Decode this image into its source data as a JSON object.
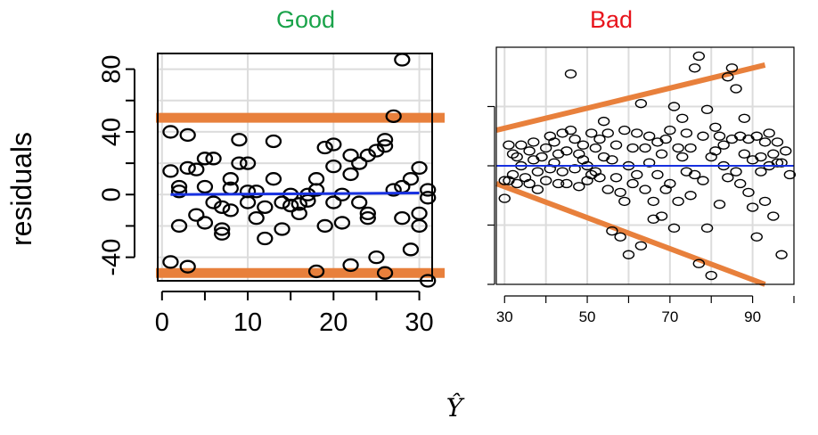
{
  "chart_data": [
    {
      "type": "scatter",
      "title": "Good",
      "title_color": "#1aa34a",
      "xlabel": "",
      "ylabel": "residuals",
      "xlim": [
        -0.5,
        31.5
      ],
      "ylim": [
        -55,
        90
      ],
      "xticks": [
        0,
        10,
        20,
        30
      ],
      "yticks": [
        80,
        40,
        0,
        -40
      ],
      "yticks_minor": [
        -20,
        20,
        60
      ],
      "grid": true,
      "band_color": "#e8803c",
      "fit_color": "#1730e0",
      "bands": [
        {
          "y0": 49,
          "y1": 49
        },
        {
          "y0": -50,
          "y1": -50
        }
      ],
      "fit": {
        "x0": 1,
        "y0": 0,
        "x1": 30,
        "y1": 1
      },
      "points": [
        {
          "x": 1,
          "y": -43
        },
        {
          "x": 1,
          "y": 15
        },
        {
          "x": 1,
          "y": 40
        },
        {
          "x": 2,
          "y": 5
        },
        {
          "x": 2,
          "y": 2
        },
        {
          "x": 2,
          "y": -20
        },
        {
          "x": 3,
          "y": 17
        },
        {
          "x": 3,
          "y": 38
        },
        {
          "x": 3,
          "y": -46
        },
        {
          "x": 4,
          "y": 16
        },
        {
          "x": 4,
          "y": -13
        },
        {
          "x": 5,
          "y": 5
        },
        {
          "x": 5,
          "y": -18
        },
        {
          "x": 5,
          "y": 23
        },
        {
          "x": 6,
          "y": 23
        },
        {
          "x": 6,
          "y": -5
        },
        {
          "x": 7,
          "y": -25
        },
        {
          "x": 7,
          "y": -22
        },
        {
          "x": 7,
          "y": -8
        },
        {
          "x": 8,
          "y": 10
        },
        {
          "x": 8,
          "y": 4
        },
        {
          "x": 8,
          "y": -10
        },
        {
          "x": 9,
          "y": 35
        },
        {
          "x": 9,
          "y": 20
        },
        {
          "x": 10,
          "y": 2
        },
        {
          "x": 10,
          "y": -5
        },
        {
          "x": 10,
          "y": 20
        },
        {
          "x": 11,
          "y": -15
        },
        {
          "x": 11,
          "y": 2
        },
        {
          "x": 12,
          "y": -28
        },
        {
          "x": 12,
          "y": -8
        },
        {
          "x": 13,
          "y": 34
        },
        {
          "x": 13,
          "y": 10
        },
        {
          "x": 14,
          "y": -22
        },
        {
          "x": 14,
          "y": -5
        },
        {
          "x": 15,
          "y": 0
        },
        {
          "x": 15,
          "y": -7
        },
        {
          "x": 16,
          "y": -6
        },
        {
          "x": 16,
          "y": -12
        },
        {
          "x": 17,
          "y": -4
        },
        {
          "x": 17,
          "y": 0
        },
        {
          "x": 18,
          "y": 10
        },
        {
          "x": 18,
          "y": 3
        },
        {
          "x": 18,
          "y": -49
        },
        {
          "x": 19,
          "y": 30
        },
        {
          "x": 19,
          "y": -20
        },
        {
          "x": 20,
          "y": 18
        },
        {
          "x": 20,
          "y": -5
        },
        {
          "x": 20,
          "y": 32
        },
        {
          "x": 21,
          "y": -18
        },
        {
          "x": 21,
          "y": 0
        },
        {
          "x": 22,
          "y": 25
        },
        {
          "x": 22,
          "y": 13
        },
        {
          "x": 22,
          "y": -45
        },
        {
          "x": 23,
          "y": 20
        },
        {
          "x": 23,
          "y": -5
        },
        {
          "x": 24,
          "y": 25
        },
        {
          "x": 24,
          "y": -12
        },
        {
          "x": 24,
          "y": -15
        },
        {
          "x": 25,
          "y": 28
        },
        {
          "x": 25,
          "y": -40
        },
        {
          "x": 26,
          "y": 35
        },
        {
          "x": 26,
          "y": 31
        },
        {
          "x": 26,
          "y": -50
        },
        {
          "x": 27,
          "y": 50
        },
        {
          "x": 27,
          "y": 3
        },
        {
          "x": 28,
          "y": 86
        },
        {
          "x": 28,
          "y": -15
        },
        {
          "x": 28,
          "y": 5
        },
        {
          "x": 29,
          "y": 10
        },
        {
          "x": 29,
          "y": -35
        },
        {
          "x": 30,
          "y": 17
        },
        {
          "x": 30,
          "y": -12
        },
        {
          "x": 30,
          "y": -20
        },
        {
          "x": 31,
          "y": 3
        },
        {
          "x": 31,
          "y": -55
        },
        {
          "x": 31,
          "y": -2
        }
      ]
    },
    {
      "type": "scatter",
      "title": "Bad",
      "title_color": "#e8141c",
      "xlabel": "",
      "ylabel": "",
      "xlim": [
        28,
        100
      ],
      "ylim": [
        -40,
        40
      ],
      "xticks": [
        30,
        50,
        70,
        90
      ],
      "xticks_minor": [
        40,
        60,
        80,
        100
      ],
      "yticks": [],
      "grid": true,
      "band_color": "#e8803c",
      "fit_color": "#1730e0",
      "bands": [
        {
          "x0": 28,
          "y0": 12,
          "x1": 93,
          "y1": 34
        },
        {
          "x0": 28,
          "y0": -6,
          "x1": 93,
          "y1": -40
        }
      ],
      "fit": {
        "x0": 28,
        "y0": 0,
        "x1": 100,
        "y1": 0
      },
      "points": [
        {
          "x": 30,
          "y": -11
        },
        {
          "x": 30,
          "y": -5
        },
        {
          "x": 31,
          "y": -5
        },
        {
          "x": 31,
          "y": 7
        },
        {
          "x": 32,
          "y": -3
        },
        {
          "x": 32,
          "y": 4
        },
        {
          "x": 33,
          "y": 3
        },
        {
          "x": 33,
          "y": -6
        },
        {
          "x": 34,
          "y": 7
        },
        {
          "x": 34,
          "y": 0
        },
        {
          "x": 35,
          "y": -4
        },
        {
          "x": 36,
          "y": 5
        },
        {
          "x": 36,
          "y": -6
        },
        {
          "x": 37,
          "y": 2
        },
        {
          "x": 37,
          "y": 8
        },
        {
          "x": 38,
          "y": -2
        },
        {
          "x": 38,
          "y": -8
        },
        {
          "x": 39,
          "y": 3
        },
        {
          "x": 40,
          "y": 6
        },
        {
          "x": 40,
          "y": -5
        },
        {
          "x": 41,
          "y": 10
        },
        {
          "x": 41,
          "y": -1
        },
        {
          "x": 42,
          "y": 8
        },
        {
          "x": 42,
          "y": 1
        },
        {
          "x": 43,
          "y": -6
        },
        {
          "x": 43,
          "y": 4
        },
        {
          "x": 44,
          "y": -2
        },
        {
          "x": 44,
          "y": 11
        },
        {
          "x": 45,
          "y": 5
        },
        {
          "x": 45,
          "y": -6
        },
        {
          "x": 46,
          "y": 31
        },
        {
          "x": 46,
          "y": 12
        },
        {
          "x": 47,
          "y": -1
        },
        {
          "x": 47,
          "y": 9
        },
        {
          "x": 48,
          "y": 4
        },
        {
          "x": 48,
          "y": -7
        },
        {
          "x": 49,
          "y": 2
        },
        {
          "x": 49,
          "y": 7
        },
        {
          "x": 50,
          "y": -5
        },
        {
          "x": 50,
          "y": 0
        },
        {
          "x": 51,
          "y": -3
        },
        {
          "x": 51,
          "y": 11
        },
        {
          "x": 52,
          "y": 6
        },
        {
          "x": 52,
          "y": -2
        },
        {
          "x": 53,
          "y": -4
        },
        {
          "x": 53,
          "y": 9
        },
        {
          "x": 54,
          "y": 15
        },
        {
          "x": 54,
          "y": 3
        },
        {
          "x": 55,
          "y": 11
        },
        {
          "x": 55,
          "y": -8
        },
        {
          "x": 56,
          "y": -22
        },
        {
          "x": 56,
          "y": 2
        },
        {
          "x": 57,
          "y": -4
        },
        {
          "x": 57,
          "y": 7
        },
        {
          "x": 58,
          "y": -9
        },
        {
          "x": 58,
          "y": -24
        },
        {
          "x": 59,
          "y": 12
        },
        {
          "x": 59,
          "y": -12
        },
        {
          "x": 60,
          "y": 0
        },
        {
          "x": 60,
          "y": -30
        },
        {
          "x": 61,
          "y": 6
        },
        {
          "x": 61,
          "y": -6
        },
        {
          "x": 62,
          "y": 11
        },
        {
          "x": 62,
          "y": -3
        },
        {
          "x": 63,
          "y": 21
        },
        {
          "x": 63,
          "y": -27
        },
        {
          "x": 64,
          "y": 6
        },
        {
          "x": 64,
          "y": -8
        },
        {
          "x": 65,
          "y": 10
        },
        {
          "x": 65,
          "y": 1
        },
        {
          "x": 66,
          "y": -18
        },
        {
          "x": 66,
          "y": -12
        },
        {
          "x": 67,
          "y": 8
        },
        {
          "x": 67,
          "y": -3
        },
        {
          "x": 68,
          "y": 4
        },
        {
          "x": 68,
          "y": -17
        },
        {
          "x": 69,
          "y": 9
        },
        {
          "x": 69,
          "y": -8
        },
        {
          "x": 70,
          "y": 12
        },
        {
          "x": 70,
          "y": -6
        },
        {
          "x": 71,
          "y": 20
        },
        {
          "x": 71,
          "y": -21
        },
        {
          "x": 72,
          "y": 6
        },
        {
          "x": 72,
          "y": -12
        },
        {
          "x": 73,
          "y": 3
        },
        {
          "x": 73,
          "y": 16
        },
        {
          "x": 74,
          "y": -2
        },
        {
          "x": 74,
          "y": 11
        },
        {
          "x": 75,
          "y": 6
        },
        {
          "x": 75,
          "y": -10
        },
        {
          "x": 76,
          "y": 33
        },
        {
          "x": 76,
          "y": -3
        },
        {
          "x": 77,
          "y": 37
        },
        {
          "x": 77,
          "y": -33
        },
        {
          "x": 78,
          "y": 10
        },
        {
          "x": 78,
          "y": -5
        },
        {
          "x": 79,
          "y": 19
        },
        {
          "x": 79,
          "y": -21
        },
        {
          "x": 80,
          "y": 3
        },
        {
          "x": 80,
          "y": -37
        },
        {
          "x": 81,
          "y": 5
        },
        {
          "x": 81,
          "y": 13
        },
        {
          "x": 82,
          "y": 10
        },
        {
          "x": 82,
          "y": -13
        },
        {
          "x": 83,
          "y": 0
        },
        {
          "x": 83,
          "y": 7
        },
        {
          "x": 84,
          "y": 30
        },
        {
          "x": 84,
          "y": -4
        },
        {
          "x": 85,
          "y": 9
        },
        {
          "x": 85,
          "y": 33
        },
        {
          "x": 86,
          "y": -2
        },
        {
          "x": 86,
          "y": 26
        },
        {
          "x": 87,
          "y": 10
        },
        {
          "x": 87,
          "y": -6
        },
        {
          "x": 88,
          "y": 16
        },
        {
          "x": 88,
          "y": 4
        },
        {
          "x": 89,
          "y": -9
        },
        {
          "x": 89,
          "y": 9
        },
        {
          "x": 90,
          "y": 2
        },
        {
          "x": 90,
          "y": -14
        },
        {
          "x": 91,
          "y": 10
        },
        {
          "x": 91,
          "y": -24
        },
        {
          "x": 92,
          "y": 3
        },
        {
          "x": 92,
          "y": -2
        },
        {
          "x": 93,
          "y": -12
        },
        {
          "x": 93,
          "y": 8
        },
        {
          "x": 94,
          "y": 0
        },
        {
          "x": 94,
          "y": 11
        },
        {
          "x": 95,
          "y": -17
        },
        {
          "x": 95,
          "y": 4
        },
        {
          "x": 96,
          "y": 1
        },
        {
          "x": 96,
          "y": 8
        },
        {
          "x": 97,
          "y": -30
        },
        {
          "x": 97,
          "y": 1
        },
        {
          "x": 98,
          "y": 5
        },
        {
          "x": 99,
          "y": -3
        }
      ]
    }
  ],
  "shared_xlabel": "Ŷ"
}
